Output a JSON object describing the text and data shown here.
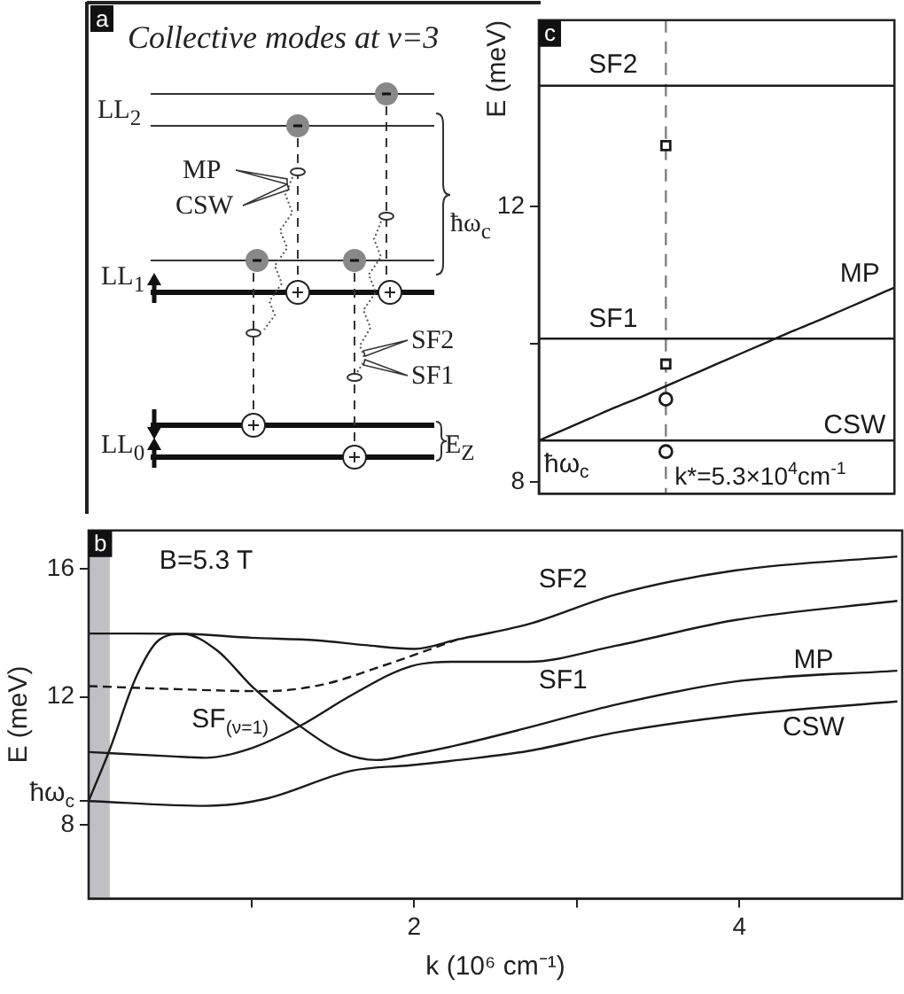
{
  "chart_data": [
    {
      "type": "other",
      "title": "Collective modes at ν=3",
      "annotations": [
        "a",
        "LL$_{2}$",
        "LL$_{1}$",
        "LL$_{0}$",
        "MP",
        "CSW",
        "ħω$_{c}$",
        "SF2",
        "SF1",
        "E$_{Z}$"
      ]
    },
    {
      "type": "line",
      "ylabel": "E (meV)",
      "categories": [
        null,
        null,
        null,
        null,
        null,
        null,
        null,
        null,
        null,
        null,
        null,
        null,
        null,
        null,
        null
      ],
      "ylim": [
        7.83,
        14.7
      ],
      "yticks": [
        8,
        {
          "value": 10,
          "label": null
        },
        12
      ],
      "tick_labels": "y",
      "ref_lines": [
        {
          "axis": "x",
          "label": "k*=5.3×10$^{4}$cm$^{-1}$",
          "color": "#888888",
          "line_style": "dashed"
        }
      ],
      "series": [
        {
          "color": "#1a1a1a",
          "values": [
            13.75,
            13.75,
            13.75,
            13.75,
            13.75,
            13.75,
            13.75,
            13.75,
            13.75,
            13.75,
            13.75,
            13.75,
            13.75,
            13.75,
            13.75
          ]
        },
        {
          "color": "#1a1a1a",
          "values": [
            10.08,
            10.08,
            10.08,
            10.08,
            10.08,
            10.08,
            10.08,
            10.08,
            10.08,
            10.08,
            10.08,
            10.08,
            10.08,
            10.08,
            10.08
          ]
        },
        {
          "color": "#1a1a1a",
          "values": [
            8.6,
            8.6,
            8.6,
            8.6,
            8.6,
            8.6,
            8.6,
            8.6,
            8.6,
            8.6,
            8.6,
            8.6,
            8.6,
            8.6,
            8.6
          ]
        },
        {
          "color": "#1a1a1a",
          "values": [
            8.6,
            8.76,
            8.92,
            9.08,
            9.23,
            9.39,
            9.55,
            9.71,
            9.87,
            10.03,
            10.19,
            10.34,
            10.5,
            10.66,
            10.82
          ]
        },
        {
          "marker": "square",
          "color": "#1a1a1a",
          "values": [
            null,
            null,
            null,
            null,
            null,
            12.88,
            null,
            null,
            null,
            null,
            null,
            null,
            null,
            null,
            null
          ]
        },
        {
          "marker": "square",
          "color": "#1a1a1a",
          "values": [
            null,
            null,
            null,
            null,
            null,
            9.71,
            null,
            null,
            null,
            null,
            null,
            null,
            null,
            null,
            null
          ]
        },
        {
          "marker": "circle",
          "color": "#1a1a1a",
          "values": [
            null,
            null,
            null,
            null,
            null,
            9.2,
            null,
            null,
            null,
            null,
            null,
            null,
            null,
            null,
            null
          ]
        },
        {
          "marker": "circle",
          "color": "#1a1a1a",
          "values": [
            null,
            null,
            null,
            null,
            null,
            8.44,
            null,
            null,
            null,
            null,
            null,
            null,
            null,
            null,
            null
          ]
        }
      ],
      "annotations": [
        "c",
        "SF2",
        "SF1",
        "MP",
        "CSW",
        "ħω$_{c}$"
      ]
    },
    {
      "type": "line",
      "xlabel": "k (10⁶ cm⁻¹)",
      "ylabel": "E (meV)",
      "xlim": [
        0,
        5
      ],
      "xticks": [
        {
          "value": 1,
          "label": null
        },
        2,
        {
          "value": 3,
          "label": null
        },
        4
      ],
      "ylim": [
        5.7,
        17.2
      ],
      "yticks": [
        8,
        {
          "value": 8.75,
          "label": "ħω$_{c}$"
        },
        12,
        16
      ],
      "bands": [
        {
          "axis": "x",
          "from": 0,
          "to": 0.13,
          "color": "#c0c0c4"
        }
      ],
      "series": [
        {
          "color": "#1a1a1a",
          "x": [
            0,
            0.3,
            0.6,
            1.0,
            1.4,
            1.7,
            2.0,
            2.27,
            2.7,
            3.24,
            3.97,
            4.97
          ],
          "values": [
            13.98,
            13.98,
            13.97,
            13.85,
            13.77,
            13.62,
            13.5,
            13.8,
            14.27,
            15.2,
            15.95,
            16.39
          ]
        },
        {
          "color": "#1a1a1a",
          "x": [
            0,
            0.5,
            0.72,
            1.0,
            1.3,
            1.62,
            1.98,
            2.27,
            2.7,
            3.24,
            3.97,
            4.97
          ],
          "values": [
            10.28,
            10.15,
            10.1,
            10.4,
            11.1,
            12.07,
            12.96,
            13.1,
            13.1,
            13.6,
            14.4,
            15.0
          ]
        },
        {
          "color": "#1a1a1a",
          "x": [
            0,
            0.13,
            0.29,
            0.43,
            0.58,
            0.79,
            1.01,
            1.3,
            1.55,
            1.77,
            1.98,
            2.27,
            2.7,
            3.24,
            3.97,
            4.97
          ],
          "values": [
            8.75,
            10.36,
            12.6,
            13.77,
            13.97,
            13.45,
            12.3,
            11.09,
            10.28,
            10.03,
            10.2,
            10.5,
            11.04,
            11.76,
            12.48,
            12.82
          ]
        },
        {
          "color": "#1a1a1a",
          "x": [
            0,
            0.72,
            1.08,
            1.62,
            1.98,
            2.27,
            2.7,
            3.24,
            3.97,
            4.97
          ],
          "values": [
            8.75,
            8.6,
            8.81,
            9.7,
            9.87,
            10.03,
            10.31,
            10.89,
            11.42,
            11.86
          ]
        },
        {
          "color": "#1a1a1a",
          "line_style": "dashed",
          "x": [
            0,
            0.5,
            1.08,
            1.44,
            1.8,
            2.27
          ],
          "values": [
            12.34,
            12.25,
            12.18,
            12.39,
            12.96,
            13.8
          ]
        }
      ],
      "annotations": [
        "b",
        "B=5.3 T",
        "SF2",
        "SF1",
        "MP",
        "CSW",
        "SF$_{(ν=1)}$"
      ]
    }
  ]
}
